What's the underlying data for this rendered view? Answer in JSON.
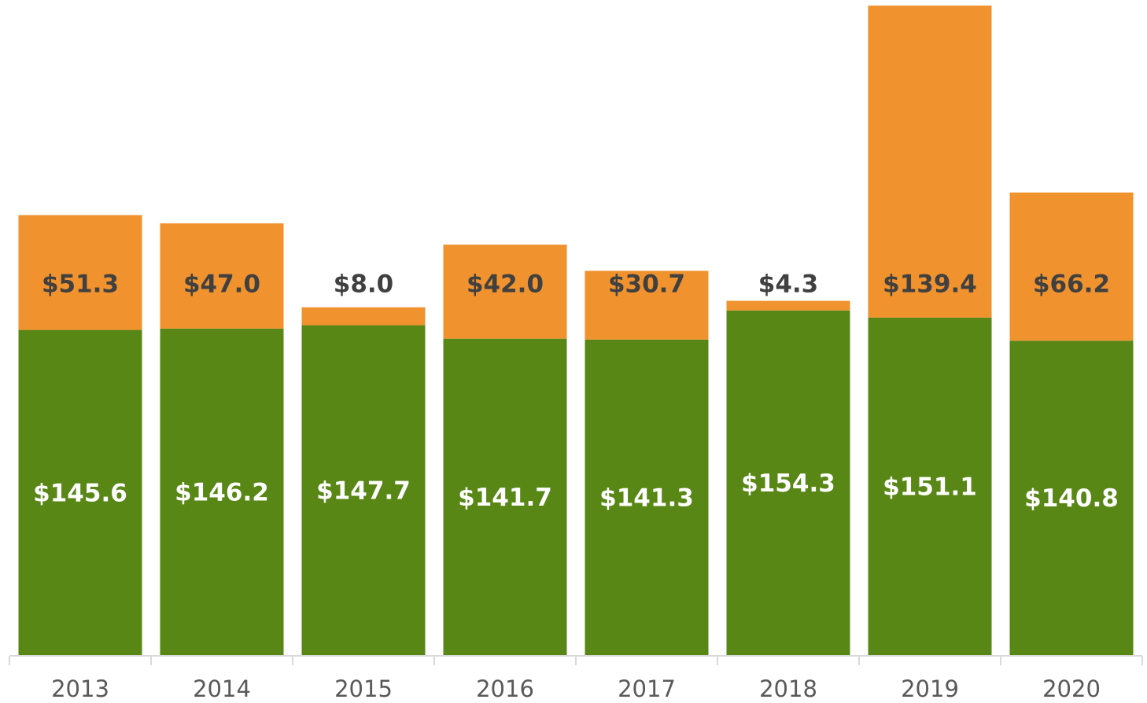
{
  "chart_data": {
    "type": "bar",
    "stacked": true,
    "categories": [
      "2013",
      "2014",
      "2015",
      "2016",
      "2017",
      "2018",
      "2019",
      "2020"
    ],
    "series": [
      {
        "color": "#588716",
        "values": [
          145.6,
          146.2,
          147.7,
          141.7,
          141.3,
          154.3,
          151.1,
          140.8
        ],
        "value_labels": [
          "$145.6",
          "$146.2",
          "$147.7",
          "$141.7",
          "$141.3",
          "$154.3",
          "$151.1",
          "$140.8"
        ]
      },
      {
        "color": "#f0922e",
        "values": [
          51.3,
          47.0,
          8.0,
          42.0,
          30.7,
          4.3,
          139.4,
          66.2
        ],
        "value_labels": [
          "$51.3",
          "$47.0",
          "$8.0",
          "$42.0",
          "$30.7",
          "$4.3",
          "$139.4",
          "$66.2"
        ]
      }
    ],
    "ylim": [
      0,
      293
    ]
  }
}
